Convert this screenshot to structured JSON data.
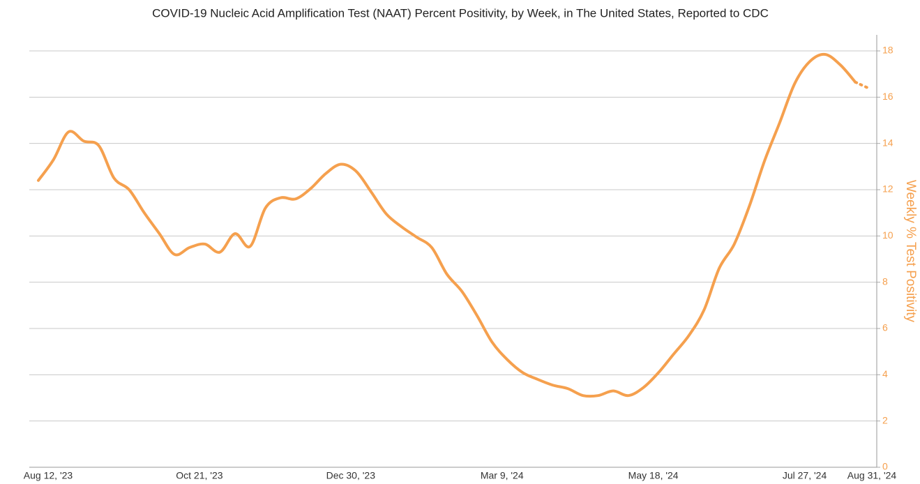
{
  "chart_data": {
    "type": "line",
    "title": "COVID-19 Nucleic Acid Amplification Test (NAAT) Percent Positivity, by Week, in The United States, Reported to CDC",
    "y_axis_label": "Weekly % Test Positivity",
    "categories": [
      "Aug 12, '23",
      null,
      null,
      null,
      null,
      null,
      null,
      null,
      null,
      null,
      "Oct 21, '23",
      null,
      null,
      null,
      null,
      null,
      null,
      null,
      null,
      null,
      "Dec 30, '23",
      null,
      null,
      null,
      null,
      null,
      null,
      null,
      null,
      null,
      "Mar 9, '24",
      null,
      null,
      null,
      null,
      null,
      null,
      null,
      null,
      null,
      "May 18, '24",
      null,
      null,
      null,
      null,
      null,
      null,
      null,
      null,
      null,
      "Jul 27, '24",
      null,
      null,
      null,
      null,
      "Aug 31, '24"
    ],
    "series": [
      {
        "name": "Weekly % Test Positivity",
        "color": "#f5a04e",
        "values": [
          12.4,
          13.3,
          14.5,
          14.1,
          13.9,
          12.5,
          12.0,
          11.0,
          10.1,
          9.2,
          9.5,
          9.65,
          9.3,
          10.1,
          9.55,
          11.2,
          11.65,
          11.6,
          12.05,
          12.7,
          13.1,
          12.8,
          11.9,
          10.95,
          10.4,
          9.95,
          9.5,
          8.35,
          7.6,
          6.55,
          5.4,
          4.65,
          4.1,
          3.8,
          3.55,
          3.4,
          3.1,
          3.1,
          3.3,
          3.1,
          3.45,
          4.1,
          4.9,
          5.7,
          6.8,
          8.6,
          9.65,
          11.3,
          13.25,
          14.9,
          16.6,
          17.55,
          17.85,
          17.4,
          16.65,
          16.35
        ]
      }
    ],
    "provisional_from_index": 54,
    "ylim": [
      0,
      18
    ],
    "yticks": [
      0,
      2,
      4,
      6,
      8,
      10,
      12,
      14,
      16,
      18
    ],
    "y_axis_side": "right",
    "grid": true
  }
}
